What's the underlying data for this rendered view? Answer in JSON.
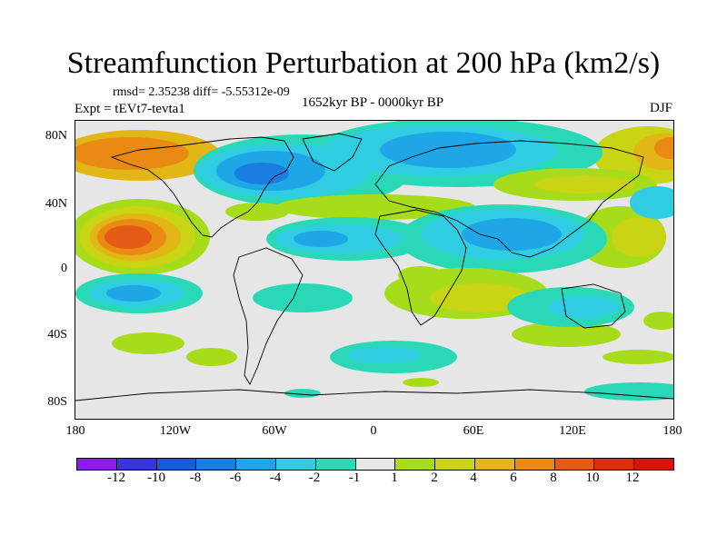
{
  "title": "Streamfunction Perturbation at 200 hPa (km2/s)",
  "stats": "rmsd= 2.35238  diff= -5.55312e-09",
  "experiment": "Expt = tEVt7-tevta1",
  "period": "1652kyr BP - 0000kyr BP",
  "season": "DJF",
  "axes": {
    "y_labels": [
      "80N",
      "40N",
      "0",
      "40S",
      "80S"
    ],
    "x_labels": [
      "180",
      "120W",
      "60W",
      "0",
      "60E",
      "120E",
      "180"
    ]
  },
  "colorbar": {
    "labels": [
      "-12",
      "-10",
      "-8",
      "-6",
      "-4",
      "-2",
      "-1",
      "1",
      "2",
      "4",
      "6",
      "8",
      "10",
      "12"
    ],
    "colors": [
      "#8a1cf0",
      "#3a34e0",
      "#1a5ad8",
      "#1a7ee0",
      "#1fa6e6",
      "#30cce2",
      "#2ad8b8",
      "#e6e6e6",
      "#a6dc1a",
      "#c8d414",
      "#e2b616",
      "#e88a14",
      "#e55a14",
      "#e12a12",
      "#dc1010"
    ]
  },
  "chart_data": {
    "type": "heatmap",
    "title": "Streamfunction Perturbation at 200 hPa (km2/s)",
    "units": "km2/s",
    "levels": [
      -12,
      -10,
      -8,
      -6,
      -4,
      -2,
      -1,
      1,
      2,
      4,
      6,
      8,
      10,
      12
    ],
    "x_range": [
      -180,
      180
    ],
    "y_range": [
      -90,
      90
    ],
    "x_ticks": [
      "180",
      "120W",
      "60W",
      "0",
      "60E",
      "120E",
      "180"
    ],
    "y_ticks": [
      "80N",
      "40N",
      "0",
      "40S",
      "80S"
    ],
    "regions": [
      {
        "name": "north-pacific-positive",
        "value": 8
      },
      {
        "name": "subtropical-pacific-positive",
        "value": 11
      },
      {
        "name": "north-america-negative",
        "value": -6
      },
      {
        "name": "eurasia-negative",
        "value": -6
      },
      {
        "name": "north-atlantic-negative",
        "value": -4
      },
      {
        "name": "asia-negative",
        "value": -6
      },
      {
        "name": "atlantic-subtropical-negative",
        "value": -5
      },
      {
        "name": "south-pacific-negative",
        "value": -5
      },
      {
        "name": "atlantic-positive-band",
        "value": 3
      },
      {
        "name": "east-asia-positive",
        "value": 3
      },
      {
        "name": "south-indian-positive",
        "value": 3
      },
      {
        "name": "australia-negative",
        "value": -3
      },
      {
        "name": "south-america-positive",
        "value": 2
      },
      {
        "name": "antarctic-negative",
        "value": -2
      }
    ]
  }
}
